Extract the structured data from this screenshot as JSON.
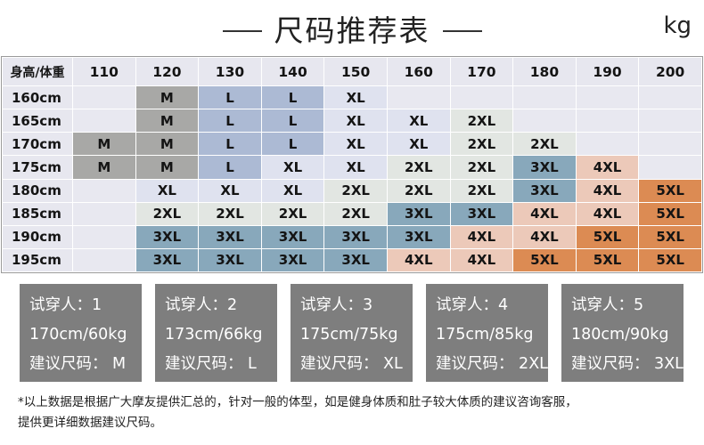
{
  "header": {
    "title": "尺码推荐表",
    "unit": "kg"
  },
  "table": {
    "corner_label": "身高/体重",
    "weights": [
      "110",
      "120",
      "130",
      "140",
      "150",
      "160",
      "170",
      "180",
      "190",
      "200"
    ],
    "rows": [
      {
        "height": "160cm",
        "cells": [
          "",
          "M",
          "L",
          "L",
          "XL",
          "",
          "",
          "",
          "",
          ""
        ]
      },
      {
        "height": "165cm",
        "cells": [
          "",
          "M",
          "L",
          "L",
          "XL",
          "XL",
          "2XL",
          "",
          "",
          ""
        ]
      },
      {
        "height": "170cm",
        "cells": [
          "M",
          "M",
          "L",
          "L",
          "XL",
          "XL",
          "2XL",
          "2XL",
          "",
          ""
        ]
      },
      {
        "height": "175cm",
        "cells": [
          "M",
          "M",
          "L",
          "XL",
          "XL",
          "2XL",
          "2XL",
          "3XL",
          "4XL",
          ""
        ]
      },
      {
        "height": "180cm",
        "cells": [
          "",
          "XL",
          "XL",
          "XL",
          "2XL",
          "2XL",
          "2XL",
          "3XL",
          "4XL",
          "5XL"
        ]
      },
      {
        "height": "185cm",
        "cells": [
          "",
          "2XL",
          "2XL",
          "2XL",
          "2XL",
          "3XL",
          "3XL",
          "4XL",
          "4XL",
          "5XL"
        ]
      },
      {
        "height": "190cm",
        "cells": [
          "",
          "3XL",
          "3XL",
          "3XL",
          "3XL",
          "3XL",
          "4XL",
          "4XL",
          "5XL",
          "5XL"
        ]
      },
      {
        "height": "195cm",
        "cells": [
          "",
          "3XL",
          "3XL",
          "3XL",
          "3XL",
          "4XL",
          "4XL",
          "5XL",
          "5XL",
          "5XL"
        ]
      }
    ],
    "size_colors": {
      "M": "#a8a8a6",
      "L": "#acbad4",
      "XL": "#dfe2ef",
      "2XL": "#e2e6e2",
      "3XL": "#88a8bb",
      "4XL": "#ecc9b9",
      "5XL": "#dc8b53"
    }
  },
  "testers": [
    {
      "label": "试穿人：1",
      "stats": "170cm/60kg",
      "size": "建议尺码： M"
    },
    {
      "label": "试穿人：2",
      "stats": "173cm/66kg",
      "size": "建议尺码： L"
    },
    {
      "label": "试穿人：3",
      "stats": "175cm/75kg",
      "size": "建议尺码： XL"
    },
    {
      "label": "试穿人：4",
      "stats": "175cm/85kg",
      "size": "建议尺码： 2XL"
    },
    {
      "label": "试穿人：5",
      "stats": "180cm/90kg",
      "size": "建议尺码： 3XL"
    }
  ],
  "note": {
    "line1": "*以上数据是根据广大摩友提供汇总的，针对一般的体型，如是健身体质和肚子较大体质的建议咨询客服，",
    "line2": "提供更详细数据建议尺码。"
  }
}
